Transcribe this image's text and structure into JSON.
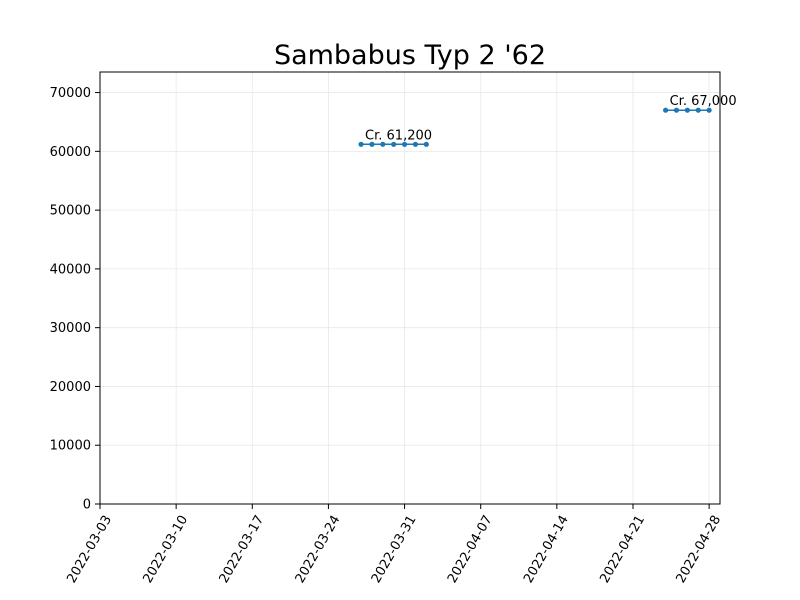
{
  "chart_data": {
    "type": "line",
    "title": "Sambabus Typ 2 '62",
    "xlabel": "",
    "ylabel": "",
    "xlim": [
      "2022-03-03",
      "2022-04-29"
    ],
    "ylim": [
      0,
      73500
    ],
    "grid": true,
    "x_ticks": [
      "2022-03-03",
      "2022-03-10",
      "2022-03-17",
      "2022-03-24",
      "2022-03-31",
      "2022-04-07",
      "2022-04-14",
      "2022-04-21",
      "2022-04-28"
    ],
    "y_ticks": [
      0,
      10000,
      20000,
      30000,
      40000,
      50000,
      60000,
      70000
    ],
    "series": [
      {
        "color": "#1f77b4",
        "segments": [
          {
            "points": [
              {
                "x": "2022-03-27",
                "y": 61200
              },
              {
                "x": "2022-03-28",
                "y": 61200
              },
              {
                "x": "2022-03-29",
                "y": 61200
              },
              {
                "x": "2022-03-30",
                "y": 61200
              },
              {
                "x": "2022-03-31",
                "y": 61200
              },
              {
                "x": "2022-04-01",
                "y": 61200
              },
              {
                "x": "2022-04-02",
                "y": 61200
              }
            ]
          },
          {
            "points": [
              {
                "x": "2022-04-24",
                "y": 67000
              },
              {
                "x": "2022-04-25",
                "y": 67000
              },
              {
                "x": "2022-04-26",
                "y": 67000
              },
              {
                "x": "2022-04-27",
                "y": 67000
              },
              {
                "x": "2022-04-28",
                "y": 67000
              }
            ]
          }
        ]
      }
    ],
    "annotations": [
      {
        "text": "Cr. 61,200",
        "x": "2022-03-27",
        "y": 61200
      },
      {
        "text": "Cr. 67,000",
        "x": "2022-04-24",
        "y": 67000
      }
    ]
  }
}
